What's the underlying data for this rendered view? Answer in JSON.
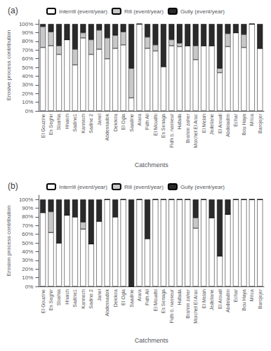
{
  "chart_data": [
    {
      "type": "bar",
      "stacked": true,
      "title": "(a)",
      "xlabel": "Catchments",
      "ylabel": "Erosive process contribution",
      "categories": [
        "El Gouzine",
        "Es Seghir",
        "Sbaihia",
        "Hnaich",
        "Sadine1",
        "Kannech",
        "Sadine 2",
        "Janel",
        "Abdessadok",
        "Dekikira",
        "El Ogla",
        "Saadine",
        "Arara",
        "Fidh Ali",
        "El Moudhi",
        "Es Senaga",
        "Fidh b. nasseur",
        "Hafada",
        "Brahim zaher",
        "Moichet El Arac",
        "El Melah",
        "Jedeliane",
        "El Aroudi",
        "Abdeladim",
        "Echar",
        "Bou Haya",
        "Mrica",
        "Barojejer"
      ],
      "series": [
        {
          "name": "Interrill (event/year)",
          "color": "#ffffff",
          "values": [
            73,
            75,
            65,
            82,
            53,
            84,
            65,
            71,
            60,
            72,
            76,
            15,
            100,
            72,
            69,
            51,
            75,
            74,
            75,
            59,
            75,
            75,
            44,
            74,
            90,
            73,
            100,
            72
          ]
        },
        {
          "name": "Rill (event/year)",
          "color": "#c8c8c8",
          "values": [
            24,
            16,
            10,
            0,
            18,
            6,
            17,
            22,
            24,
            15,
            15,
            34,
            0,
            13,
            7,
            0,
            7,
            4,
            0,
            16,
            0,
            0,
            5,
            15,
            0,
            15,
            0,
            0
          ]
        },
        {
          "name": "Gully (event/year)",
          "color": "#2a2a2a",
          "values": [
            3,
            9,
            25,
            18,
            29,
            10,
            18,
            7,
            16,
            13,
            9,
            51,
            0,
            15,
            24,
            49,
            18,
            22,
            25,
            25,
            25,
            25,
            51,
            11,
            10,
            12,
            0,
            28
          ]
        }
      ],
      "ylim": [
        0,
        105
      ],
      "yticks": [
        {
          "value": 0,
          "label": "0%"
        },
        {
          "value": 10,
          "label": "10%"
        },
        {
          "value": 20,
          "label": "20%"
        },
        {
          "value": 30,
          "label": "30%"
        },
        {
          "value": 40,
          "label": "40%"
        },
        {
          "value": 50,
          "label": "50%"
        },
        {
          "value": 60,
          "label": "60%"
        },
        {
          "value": 70,
          "label": "70%"
        },
        {
          "value": 80,
          "label": "80%"
        },
        {
          "value": 90,
          "label": "90%"
        },
        {
          "value": 100,
          "label": "100%"
        }
      ],
      "grid": false,
      "legend": "top"
    },
    {
      "type": "bar",
      "stacked": true,
      "title": "(b)",
      "xlabel": "Catchments",
      "ylabel": "Erosion process contribution",
      "categories": [
        "El Gouzine",
        "Es Seghir",
        "Sbaihia",
        "Hnaich",
        "Sadine1",
        "Kannech",
        "Sadine 2",
        "Janel",
        "Abdessadok",
        "Dekikira",
        "El Ogla",
        "Saadine",
        "Arara",
        "Fidh Ali",
        "El Moudhi",
        "Es Senaga",
        "Fidh b. nasseur",
        "Hafada",
        "Brahim zaher",
        "Moichet El Arac",
        "El Melah",
        "Jedeliane",
        "El Aroudi",
        "Abdeladim",
        "Echar",
        "Bou Haya",
        "Mrica",
        "Barojejer"
      ],
      "series": [
        {
          "name": "Interrill (event/year)",
          "color": "#ffffff",
          "values": [
            85,
            62,
            50,
            82,
            80,
            66,
            49,
            75,
            100,
            80,
            100,
            0,
            100,
            55,
            100,
            100,
            100,
            100,
            100,
            67,
            100,
            79,
            35,
            83,
            100,
            100,
            100,
            100
          ]
        },
        {
          "name": "Rill (event/year)",
          "color": "#c8c8c8",
          "values": [
            0,
            24,
            0,
            0,
            0,
            8,
            0,
            0,
            0,
            0,
            0,
            0,
            0,
            0,
            0,
            0,
            0,
            0,
            0,
            12,
            0,
            0,
            0,
            0,
            0,
            0,
            0,
            0
          ]
        },
        {
          "name": "Gully (event/year)",
          "color": "#2a2a2a",
          "values": [
            15,
            14,
            50,
            18,
            20,
            26,
            51,
            25,
            0,
            20,
            0,
            100,
            0,
            45,
            0,
            0,
            0,
            0,
            0,
            21,
            0,
            21,
            65,
            17,
            0,
            0,
            0,
            0
          ]
        }
      ],
      "ylim": [
        0,
        105
      ],
      "yticks": [
        {
          "value": 0,
          "label": "0%"
        },
        {
          "value": 10,
          "label": "10%"
        },
        {
          "value": 20,
          "label": "20%"
        },
        {
          "value": 30,
          "label": "30%"
        },
        {
          "value": 40,
          "label": "40%"
        },
        {
          "value": 50,
          "label": "50%"
        },
        {
          "value": 60,
          "label": "60%"
        },
        {
          "value": 70,
          "label": "70%"
        },
        {
          "value": 80,
          "label": "80%"
        },
        {
          "value": 90,
          "label": "90%"
        },
        {
          "value": 100,
          "label": "100%"
        }
      ],
      "grid": false,
      "legend": "top"
    }
  ]
}
